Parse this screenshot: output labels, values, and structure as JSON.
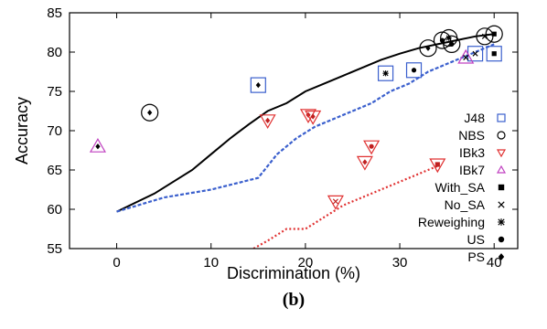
{
  "chart_data": {
    "type": "scatter",
    "xlabel": "Discrimination (%)",
    "ylabel": "Accuracy",
    "xlim": [
      -5,
      42.5
    ],
    "ylim": [
      55,
      85
    ],
    "xticks": [
      0,
      10,
      20,
      30,
      40
    ],
    "yticks": [
      55,
      60,
      65,
      70,
      75,
      80,
      85
    ],
    "panel_label": "(b)",
    "legend_position": "right",
    "legend": {
      "classifiers": [
        {
          "label": "J48",
          "marker": "square",
          "color": "#3a5fcd"
        },
        {
          "label": "NBS",
          "marker": "circle",
          "color": "#000000"
        },
        {
          "label": "IBk3",
          "marker": "triangle-down",
          "color": "#e03030"
        },
        {
          "label": "IBk7",
          "marker": "triangle-up",
          "color": "#c040c0"
        }
      ],
      "methods": [
        {
          "label": "With_SA",
          "marker": "filled-square"
        },
        {
          "label": "No_SA",
          "marker": "x"
        },
        {
          "label": "Reweighing",
          "marker": "asterisk"
        },
        {
          "label": "US",
          "marker": "filled-circle"
        },
        {
          "label": "PS",
          "marker": "filled-diamond"
        }
      ]
    },
    "curves": [
      {
        "style": "solid",
        "color": "#000000",
        "x": [
          0,
          4,
          8,
          10,
          12,
          14,
          16,
          18,
          20,
          22,
          24,
          26,
          28,
          30,
          32,
          34,
          36,
          38,
          40
        ],
        "y": [
          59.7,
          62,
          65,
          67,
          69,
          70.8,
          72.5,
          73.5,
          75,
          76,
          77,
          78,
          79,
          79.8,
          80.5,
          81,
          81.5,
          82,
          82.3
        ]
      },
      {
        "style": "dashed",
        "color": "#3a5fcd",
        "x": [
          0,
          5,
          10,
          15,
          17,
          19,
          21,
          23,
          25,
          27,
          29,
          31,
          33,
          35,
          37,
          39,
          40
        ],
        "y": [
          59.7,
          61.5,
          62.5,
          64,
          67,
          69,
          70.5,
          71.5,
          72.5,
          73.5,
          75,
          76,
          77.5,
          78.5,
          79.5,
          80.5,
          81
        ]
      },
      {
        "style": "dotted",
        "color": "#e03030",
        "x": [
          14.5,
          16,
          18,
          20,
          22,
          24,
          26,
          28,
          30,
          32,
          34
        ],
        "y": [
          55,
          56,
          57.5,
          57.5,
          59,
          60.5,
          61.5,
          62.5,
          63.5,
          64.5,
          65.5
        ]
      }
    ],
    "points": [
      {
        "classifier": "IBk7",
        "method": "PS",
        "x": -2,
        "y": 68
      },
      {
        "classifier": "NBS",
        "method": "PS",
        "x": 3.5,
        "y": 72.3
      },
      {
        "classifier": "J48",
        "method": "PS",
        "x": 15,
        "y": 75.8
      },
      {
        "classifier": "IBk3",
        "method": "PS",
        "x": 16,
        "y": 71.3
      },
      {
        "classifier": "IBk3",
        "method": "PS",
        "x": 20.3,
        "y": 72
      },
      {
        "classifier": "IBk3",
        "method": "PS",
        "x": 20.8,
        "y": 71.8
      },
      {
        "classifier": "IBk3",
        "method": "US",
        "x": 27,
        "y": 68
      },
      {
        "classifier": "IBk3",
        "method": "PS",
        "x": 26.3,
        "y": 66
      },
      {
        "classifier": "IBk3",
        "method": "No_SA",
        "x": 23.2,
        "y": 61
      },
      {
        "classifier": "IBk3",
        "method": "With_SA",
        "x": 34,
        "y": 65.7
      },
      {
        "classifier": "J48",
        "method": "Reweighing",
        "x": 28.5,
        "y": 77.3
      },
      {
        "classifier": "J48",
        "method": "US",
        "x": 31.5,
        "y": 77.7
      },
      {
        "classifier": "J48",
        "method": "No_SA",
        "x": 38,
        "y": 79.8
      },
      {
        "classifier": "J48",
        "method": "With_SA",
        "x": 40,
        "y": 79.8
      },
      {
        "classifier": "IBk7",
        "method": "No_SA",
        "x": 37,
        "y": 79.3
      },
      {
        "classifier": "NBS",
        "method": "PS",
        "x": 33,
        "y": 80.5
      },
      {
        "classifier": "NBS",
        "method": "US",
        "x": 34.5,
        "y": 81.5
      },
      {
        "classifier": "NBS",
        "method": "Reweighing",
        "x": 35.2,
        "y": 81.8
      },
      {
        "classifier": "NBS",
        "method": "US",
        "x": 35.5,
        "y": 81
      },
      {
        "classifier": "NBS",
        "method": "No_SA",
        "x": 39,
        "y": 82
      },
      {
        "classifier": "NBS",
        "method": "With_SA",
        "x": 40,
        "y": 82.3
      }
    ]
  }
}
